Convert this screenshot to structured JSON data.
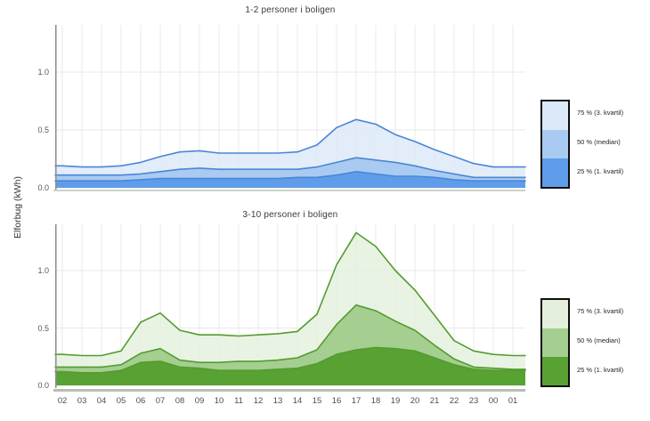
{
  "y_axis_label": "Elforbug (kWh)",
  "chart_data": [
    {
      "type": "area",
      "title": "1-2 personer i boligen",
      "xlabel": "",
      "ylabel": "Elforbug (kWh)",
      "ylim": [
        0,
        1.35
      ],
      "grid": true,
      "legend_position": "right",
      "yticks": [
        0,
        0.5,
        1.0
      ],
      "ytick_labels": [
        "0.0",
        "0.5",
        "1.0"
      ],
      "x": [
        "02",
        "03",
        "04",
        "05",
        "06",
        "07",
        "08",
        "09",
        "10",
        "11",
        "12",
        "13",
        "14",
        "15",
        "16",
        "17",
        "18",
        "19",
        "20",
        "21",
        "22",
        "23",
        "00",
        "01"
      ],
      "stroke": "#4a86d8",
      "series": [
        {
          "name": "75 % (3. kvartil)",
          "fill": "#dce9f8",
          "values": [
            0.19,
            0.18,
            0.18,
            0.19,
            0.22,
            0.27,
            0.31,
            0.32,
            0.3,
            0.3,
            0.3,
            0.3,
            0.31,
            0.37,
            0.52,
            0.59,
            0.55,
            0.46,
            0.4,
            0.33,
            0.27,
            0.21,
            0.18,
            0.18
          ]
        },
        {
          "name": "50 % (median)",
          "fill": "#a9cbf1",
          "values": [
            0.11,
            0.11,
            0.11,
            0.11,
            0.12,
            0.14,
            0.16,
            0.17,
            0.16,
            0.16,
            0.16,
            0.16,
            0.16,
            0.18,
            0.22,
            0.26,
            0.24,
            0.22,
            0.19,
            0.15,
            0.12,
            0.09,
            0.09,
            0.09
          ]
        },
        {
          "name": "25 % (1. kvartil)",
          "fill": "#5f9cea",
          "values": [
            0.06,
            0.06,
            0.06,
            0.06,
            0.07,
            0.08,
            0.08,
            0.08,
            0.08,
            0.08,
            0.08,
            0.08,
            0.09,
            0.09,
            0.11,
            0.14,
            0.12,
            0.1,
            0.1,
            0.09,
            0.07,
            0.06,
            0.06,
            0.06
          ]
        }
      ]
    },
    {
      "type": "area",
      "title": "3-10 personer i boligen",
      "xlabel": "",
      "ylabel": "Elforbug (kWh)",
      "ylim": [
        0,
        1.35
      ],
      "grid": true,
      "legend_position": "right",
      "yticks": [
        0,
        0.5,
        1.0
      ],
      "ytick_labels": [
        "0.0",
        "0.5",
        "1.0"
      ],
      "x": [
        "02",
        "03",
        "04",
        "05",
        "06",
        "07",
        "08",
        "09",
        "10",
        "11",
        "12",
        "13",
        "14",
        "15",
        "16",
        "17",
        "18",
        "19",
        "20",
        "21",
        "22",
        "23",
        "00",
        "01"
      ],
      "stroke": "#539c2e",
      "series": [
        {
          "name": "75 % (3. kvartil)",
          "fill": "#e4f0dd",
          "values": [
            0.27,
            0.26,
            0.26,
            0.3,
            0.55,
            0.63,
            0.48,
            0.44,
            0.44,
            0.43,
            0.44,
            0.45,
            0.47,
            0.62,
            1.05,
            1.33,
            1.21,
            1.0,
            0.83,
            0.61,
            0.39,
            0.3,
            0.27,
            0.26
          ]
        },
        {
          "name": "50 % (median)",
          "fill": "#a5ce91",
          "values": [
            0.16,
            0.16,
            0.16,
            0.18,
            0.28,
            0.32,
            0.22,
            0.2,
            0.2,
            0.21,
            0.21,
            0.22,
            0.24,
            0.31,
            0.53,
            0.7,
            0.65,
            0.56,
            0.48,
            0.35,
            0.23,
            0.16,
            0.15,
            0.14
          ]
        },
        {
          "name": "25 % (1. kvartil)",
          "fill": "#58a133",
          "values": [
            0.12,
            0.11,
            0.11,
            0.13,
            0.2,
            0.21,
            0.16,
            0.15,
            0.13,
            0.13,
            0.13,
            0.14,
            0.15,
            0.19,
            0.27,
            0.31,
            0.33,
            0.32,
            0.3,
            0.24,
            0.18,
            0.14,
            0.13,
            0.13
          ]
        }
      ]
    }
  ]
}
